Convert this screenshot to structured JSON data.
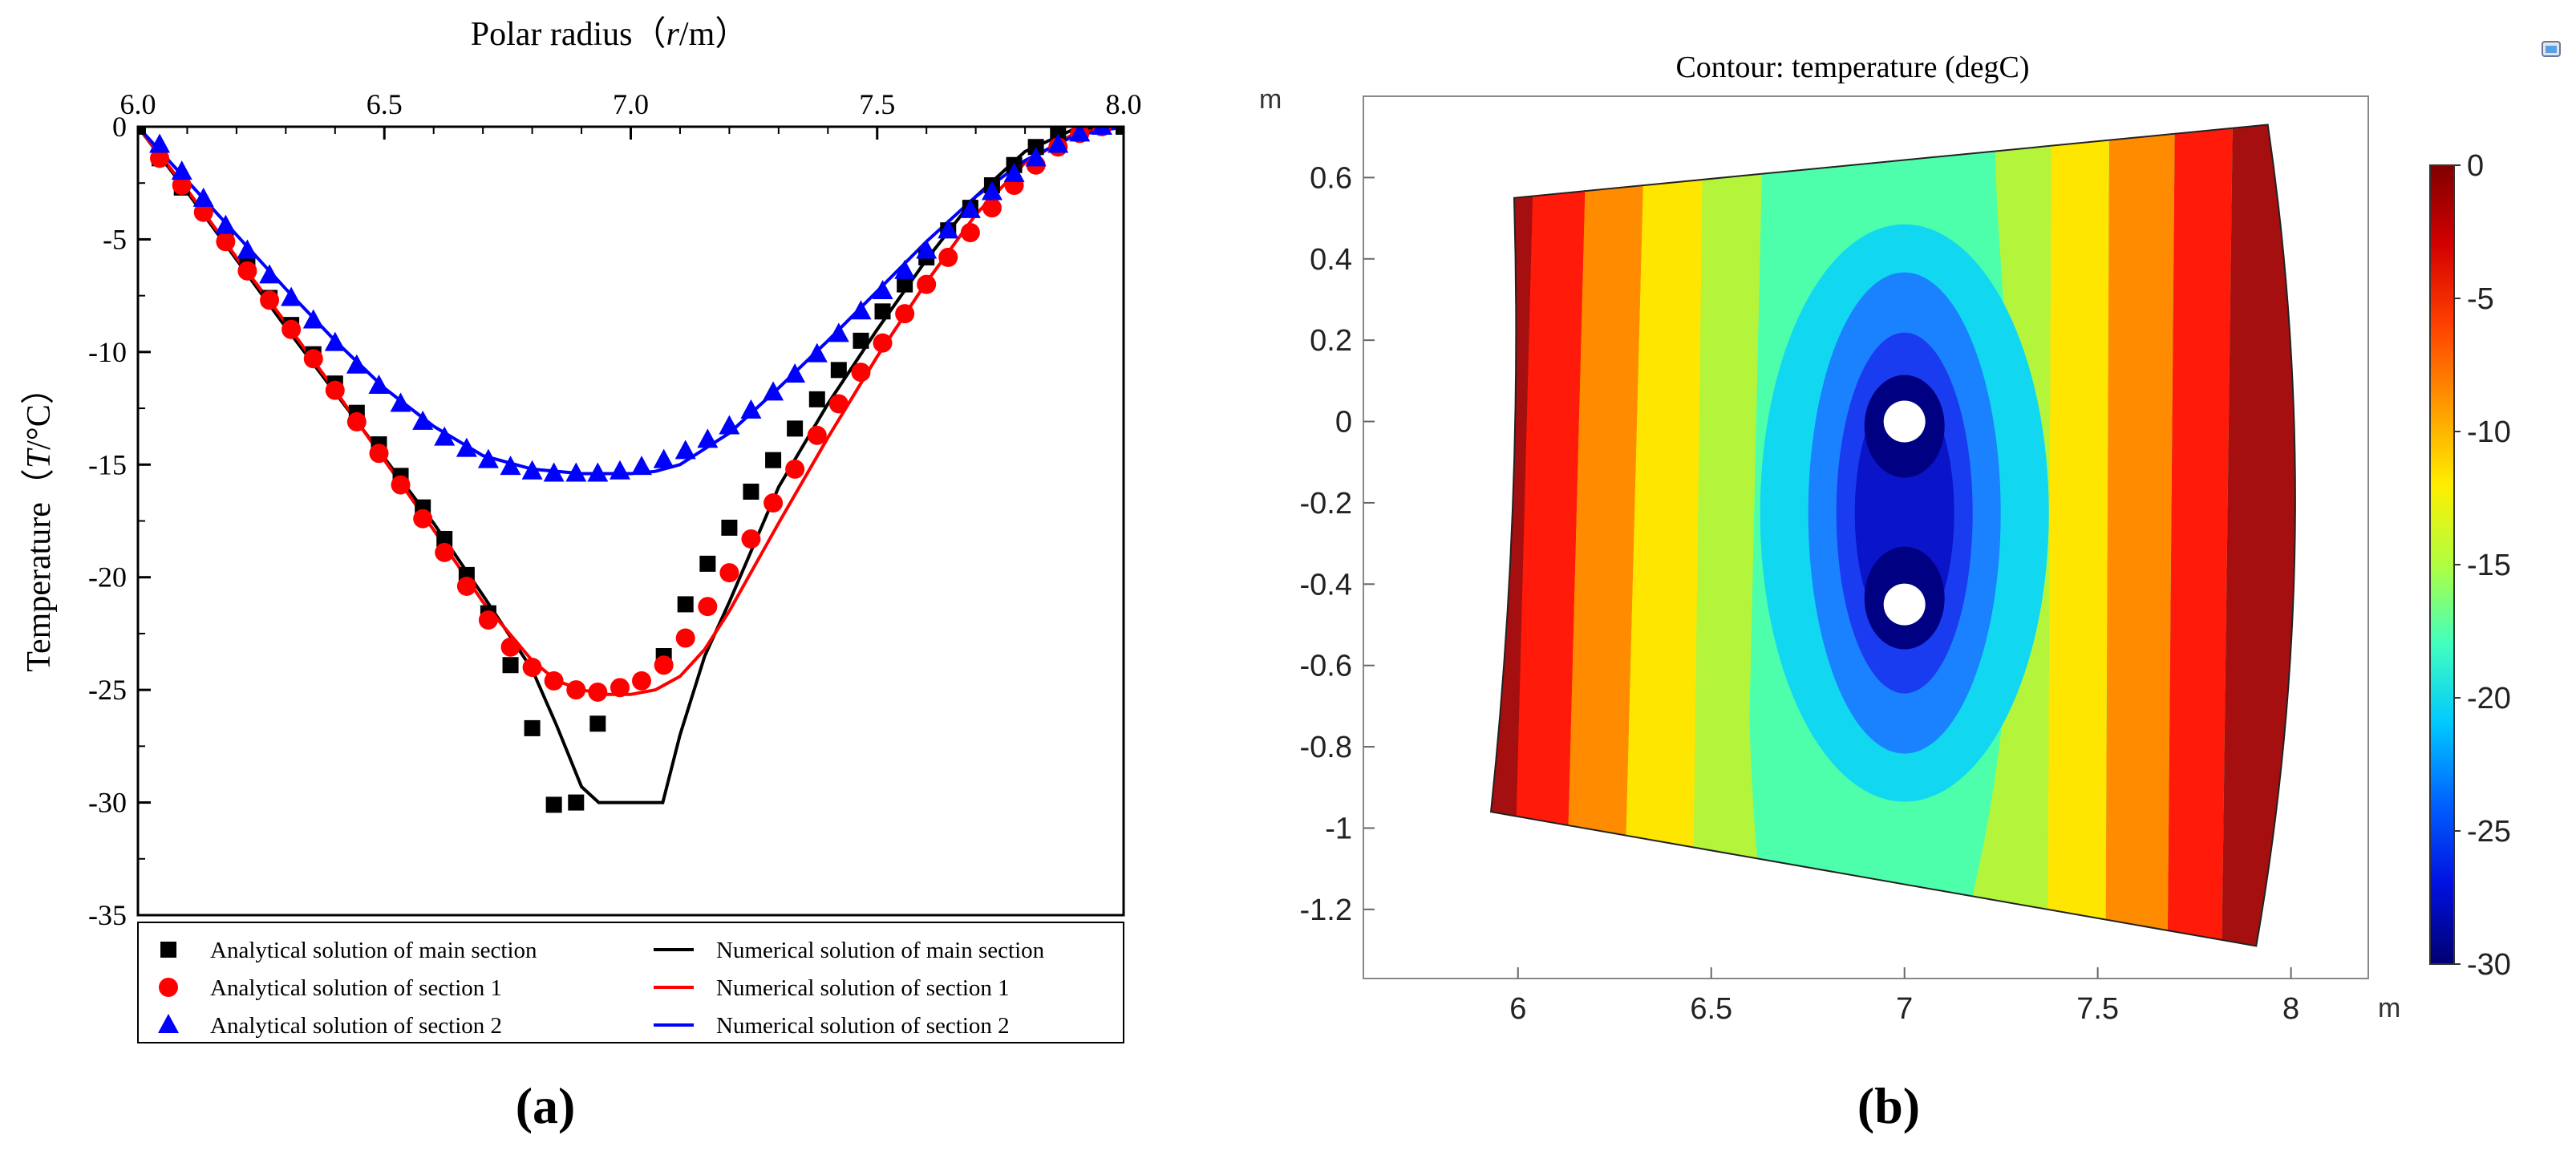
{
  "chart_data": [
    {
      "panel": "(a)",
      "type": "line",
      "title": "",
      "xlabel_main": "Polar radius（",
      "xlabel_var": "r",
      "xlabel_unit": "/m）",
      "ylabel_main": "Temperature（",
      "ylabel_var": "T",
      "ylabel_unit": "/°C）",
      "xlim": [
        6.0,
        8.0
      ],
      "ylim": [
        -35,
        0
      ],
      "xticks": [
        6.0,
        6.5,
        7.0,
        7.5,
        8.0
      ],
      "xtick_labels": [
        "6.0",
        "6.5",
        "7.0",
        "7.5",
        "8.0"
      ],
      "yticks": [
        0,
        -5,
        -10,
        -15,
        -20,
        -25,
        -30,
        -35
      ],
      "ytick_labels": [
        "0",
        "-5",
        "-10",
        "-15",
        "-20",
        "-25",
        "-30",
        "-35"
      ],
      "legend_placement": "bottom",
      "series": [
        {
          "name": "Analytical solution of main section",
          "marker": "square",
          "color": "#000000",
          "x": [
            6.0,
            6.044,
            6.089,
            6.133,
            6.178,
            6.222,
            6.267,
            6.311,
            6.356,
            6.4,
            6.444,
            6.489,
            6.533,
            6.578,
            6.622,
            6.667,
            6.711,
            6.756,
            6.8,
            6.844,
            6.889,
            6.933,
            7.067,
            7.111,
            7.156,
            7.2,
            7.244,
            7.289,
            7.333,
            7.378,
            7.422,
            7.467,
            7.511,
            7.556,
            7.6,
            7.644,
            7.689,
            7.733,
            7.778,
            7.822,
            7.867,
            7.911,
            7.956,
            8.0
          ],
          "values": [
            0,
            -1.4,
            -2.7,
            -3.7,
            -4.9,
            -6.2,
            -7.6,
            -8.8,
            -10.1,
            -11.4,
            -12.7,
            -14.1,
            -15.5,
            -16.9,
            -18.3,
            -19.9,
            -21.6,
            -23.9,
            -26.7,
            -30.1,
            -30.0,
            -26.5,
            -23.5,
            -21.2,
            -19.4,
            -17.8,
            -16.2,
            -14.8,
            -13.4,
            -12.1,
            -10.8,
            -9.5,
            -8.2,
            -7.0,
            -5.8,
            -4.6,
            -3.6,
            -2.6,
            -1.7,
            -0.9,
            -0.4,
            0,
            0,
            0
          ]
        },
        {
          "name": "Analytical solution of section 1",
          "marker": "circle",
          "color": "#ff0000",
          "x": [
            6.044,
            6.089,
            6.133,
            6.178,
            6.222,
            6.267,
            6.311,
            6.356,
            6.4,
            6.444,
            6.489,
            6.533,
            6.578,
            6.622,
            6.667,
            6.711,
            6.756,
            6.8,
            6.844,
            6.889,
            6.933,
            6.978,
            7.022,
            7.067,
            7.111,
            7.156,
            7.2,
            7.244,
            7.289,
            7.333,
            7.378,
            7.422,
            7.467,
            7.511,
            7.556,
            7.6,
            7.644,
            7.689,
            7.733,
            7.778,
            7.822,
            7.867,
            7.911,
            7.956
          ],
          "values": [
            -1.4,
            -2.6,
            -3.8,
            -5.1,
            -6.4,
            -7.7,
            -9.0,
            -10.3,
            -11.7,
            -13.1,
            -14.5,
            -15.9,
            -17.4,
            -18.9,
            -20.4,
            -21.9,
            -23.1,
            -24.0,
            -24.6,
            -25.0,
            -25.1,
            -24.9,
            -24.6,
            -23.9,
            -22.7,
            -21.3,
            -19.8,
            -18.3,
            -16.7,
            -15.2,
            -13.7,
            -12.3,
            -10.9,
            -9.6,
            -8.3,
            -7.0,
            -5.8,
            -4.7,
            -3.6,
            -2.6,
            -1.7,
            -0.9,
            -0.3,
            0
          ]
        },
        {
          "name": "Analytical solution of section 2",
          "marker": "triangle",
          "color": "#0000ff",
          "x": [
            6.044,
            6.089,
            6.133,
            6.178,
            6.222,
            6.267,
            6.311,
            6.356,
            6.4,
            6.444,
            6.489,
            6.533,
            6.578,
            6.622,
            6.667,
            6.711,
            6.756,
            6.8,
            6.844,
            6.889,
            6.933,
            6.978,
            7.022,
            7.067,
            7.111,
            7.156,
            7.2,
            7.244,
            7.289,
            7.333,
            7.378,
            7.422,
            7.467,
            7.511,
            7.556,
            7.6,
            7.644,
            7.689,
            7.733,
            7.778,
            7.822,
            7.867,
            7.911,
            7.956
          ],
          "values": [
            -0.8,
            -2.0,
            -3.2,
            -4.4,
            -5.5,
            -6.6,
            -7.6,
            -8.6,
            -9.6,
            -10.6,
            -11.5,
            -12.3,
            -13.1,
            -13.8,
            -14.3,
            -14.8,
            -15.1,
            -15.3,
            -15.4,
            -15.4,
            -15.4,
            -15.3,
            -15.1,
            -14.8,
            -14.4,
            -13.9,
            -13.3,
            -12.6,
            -11.8,
            -11.0,
            -10.1,
            -9.2,
            -8.2,
            -7.3,
            -6.4,
            -5.5,
            -4.6,
            -3.7,
            -2.9,
            -2.1,
            -1.4,
            -0.8,
            -0.3,
            0
          ]
        },
        {
          "name": "Numerical solution of main section",
          "marker": "none",
          "color": "#000000",
          "x": [
            6.0,
            6.1,
            6.2,
            6.3,
            6.4,
            6.5,
            6.6,
            6.7,
            6.8,
            6.85,
            6.9,
            6.935,
            7.065,
            7.1,
            7.15,
            7.2,
            7.3,
            7.4,
            7.5,
            7.6,
            7.7,
            7.8,
            7.9,
            8.0
          ],
          "values": [
            0,
            -2.9,
            -5.9,
            -8.9,
            -11.8,
            -14.7,
            -17.6,
            -20.8,
            -24.1,
            -26.6,
            -29.3,
            -30.0,
            -30.0,
            -27.0,
            -23.5,
            -21.1,
            -16.0,
            -12.3,
            -9.0,
            -5.9,
            -3.1,
            -1.1,
            -0.1,
            0
          ]
        },
        {
          "name": "Numerical solution of section 1",
          "marker": "none",
          "color": "#ff0000",
          "x": [
            6.0,
            6.1,
            6.2,
            6.3,
            6.4,
            6.5,
            6.6,
            6.7,
            6.8,
            6.85,
            6.9,
            6.95,
            7.0,
            7.05,
            7.1,
            7.15,
            7.2,
            7.3,
            7.4,
            7.5,
            7.6,
            7.7,
            7.8,
            7.9,
            8.0
          ],
          "values": [
            0,
            -2.8,
            -5.8,
            -8.7,
            -11.7,
            -14.8,
            -17.9,
            -21.1,
            -23.7,
            -24.6,
            -25.0,
            -25.2,
            -25.2,
            -25.0,
            -24.4,
            -23.2,
            -21.5,
            -17.6,
            -13.8,
            -10.2,
            -6.9,
            -3.9,
            -1.6,
            -0.3,
            0
          ]
        },
        {
          "name": "Numerical solution of section 2",
          "marker": "none",
          "color": "#0000ff",
          "x": [
            6.0,
            6.1,
            6.2,
            6.3,
            6.4,
            6.5,
            6.6,
            6.7,
            6.8,
            6.9,
            6.95,
            7.0,
            7.05,
            7.1,
            7.2,
            7.3,
            7.4,
            7.5,
            7.6,
            7.7,
            7.8,
            7.9,
            8.0
          ],
          "values": [
            0,
            -2.4,
            -4.8,
            -7.2,
            -9.5,
            -11.6,
            -13.3,
            -14.6,
            -15.2,
            -15.4,
            -15.4,
            -15.4,
            -15.3,
            -15.0,
            -13.6,
            -11.6,
            -9.5,
            -7.3,
            -5.1,
            -3.1,
            -1.5,
            -0.4,
            0
          ]
        }
      ],
      "legend_order": [
        0,
        3,
        1,
        4,
        2,
        5
      ]
    },
    {
      "panel": "(b)",
      "type": "heatmap",
      "title": "Contour: temperature (degC)",
      "xlabel": "m",
      "ylabel": "m",
      "xlim": [
        5.6,
        8.2
      ],
      "ylim": [
        -1.37,
        0.8
      ],
      "xticks": [
        6,
        6.5,
        7,
        7.5,
        8
      ],
      "xtick_labels": [
        "6",
        "6.5",
        "7",
        "7.5",
        "8"
      ],
      "yticks": [
        0.6,
        0.4,
        0.2,
        0,
        -0.2,
        -0.4,
        -0.6,
        -0.8,
        -1,
        -1.2
      ],
      "ytick_labels": [
        "0.6",
        "0.4",
        "0.2",
        "0",
        "-0.2",
        "-0.4",
        "-0.6",
        "-0.8",
        "-1",
        "-1.2"
      ],
      "colorbar_range": [
        -30,
        0
      ],
      "colorbar_ticks": [
        0,
        -5,
        -10,
        -15,
        -20,
        -25,
        -30
      ],
      "colorbar_tick_labels": [
        "0",
        "-5",
        "-10",
        "-15",
        "-20",
        "-25",
        "-30"
      ],
      "domain_corners": {
        "top_left": [
          5.99,
          0.55
        ],
        "top_right": [
          7.94,
          0.73
        ],
        "bottom_right": [
          7.91,
          -1.29
        ],
        "bottom_left": [
          5.93,
          -0.96
        ]
      },
      "holes": [
        {
          "x": 7.0,
          "y": 0.0,
          "r": 0.05
        },
        {
          "x": 7.0,
          "y": -0.45,
          "r": 0.05
        }
      ],
      "contour_levels": [
        {
          "level": -1,
          "color": "#a50f0f"
        },
        {
          "level": -3,
          "color": "#ff1a0a"
        },
        {
          "level": -7,
          "color": "#ff8c00"
        },
        {
          "level": -10,
          "color": "#ffe600"
        },
        {
          "level": -13,
          "color": "#b4f53c"
        },
        {
          "level": -17,
          "color": "#4dffaa"
        },
        {
          "level": -20,
          "color": "#12d7f0"
        },
        {
          "level": -23,
          "color": "#1a82ff"
        },
        {
          "level": -26,
          "color": "#1a3cf0"
        },
        {
          "level": -28,
          "color": "#0a14c8"
        },
        {
          "level": -30,
          "color": "#000082"
        }
      ]
    }
  ],
  "panel_labels": {
    "a": "(a)",
    "b": "(b)"
  },
  "corner_icon": "window-restore-icon"
}
